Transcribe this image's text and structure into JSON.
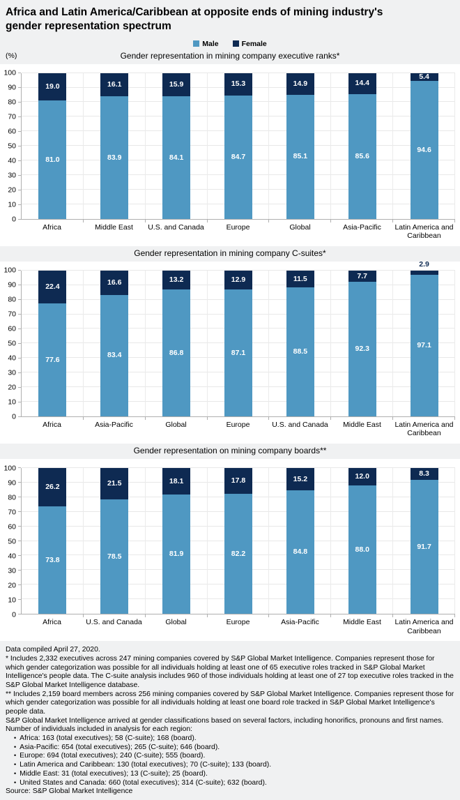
{
  "page": {
    "title": "Africa and Latin America/Caribbean at opposite ends of mining industry's gender representation spectrum",
    "percent_label": "(%)"
  },
  "legend": {
    "male": "Male",
    "female": "Female"
  },
  "colors": {
    "male": "#4f98c2",
    "female": "#0e2a52"
  },
  "chart_data": [
    {
      "type": "bar",
      "stacked": true,
      "title": "Gender representation in mining company executive ranks*",
      "categories": [
        "Africa",
        "Middle East",
        "U.S. and Canada",
        "Europe",
        "Global",
        "Asia-Pacific",
        "Latin America and Caribbean"
      ],
      "series": [
        {
          "name": "Male",
          "values": [
            81.0,
            83.9,
            84.1,
            84.7,
            85.1,
            85.6,
            94.6
          ]
        },
        {
          "name": "Female",
          "values": [
            19.0,
            16.1,
            15.9,
            15.3,
            14.9,
            14.4,
            5.4
          ]
        }
      ],
      "ylabel": "(%)",
      "ylim": [
        0,
        100
      ],
      "ytick_step": 10,
      "grid": true,
      "legend_position": "top-center"
    },
    {
      "type": "bar",
      "stacked": true,
      "title": "Gender representation in mining company C-suites*",
      "categories": [
        "Africa",
        "Asia-Pacific",
        "Global",
        "Europe",
        "U.S. and Canada",
        "Middle East",
        "Latin America and Caribbean"
      ],
      "series": [
        {
          "name": "Male",
          "values": [
            77.6,
            83.4,
            86.8,
            87.1,
            88.5,
            92.3,
            97.1
          ]
        },
        {
          "name": "Female",
          "values": [
            22.4,
            16.6,
            13.2,
            12.9,
            11.5,
            7.7,
            2.9
          ]
        }
      ],
      "ylim": [
        0,
        100
      ],
      "ytick_step": 10,
      "grid": true
    },
    {
      "type": "bar",
      "stacked": true,
      "title": "Gender representation on mining company boards**",
      "categories": [
        "Africa",
        "U.S. and Canada",
        "Global",
        "Europe",
        "Asia-Pacific",
        "Middle East",
        "Latin America and Caribbean"
      ],
      "series": [
        {
          "name": "Male",
          "values": [
            73.8,
            78.5,
            81.9,
            82.2,
            84.8,
            88.0,
            91.7
          ]
        },
        {
          "name": "Female",
          "values": [
            26.2,
            21.5,
            18.1,
            17.8,
            15.2,
            12.0,
            8.3
          ]
        }
      ],
      "ylim": [
        0,
        100
      ],
      "ytick_step": 10,
      "grid": true
    }
  ],
  "footnotes": {
    "compiled": "Data compiled April 27, 2020.",
    "note_executives": "* Includes 2,332 executives across 247 mining companies covered by S&P Global Market Intelligence. Companies represent those for which gender categorization was possible for all individuals holding at least one of 65 executive roles tracked in S&P Global Market Intelligence's people data. The C-suite analysis includes 960 of those individuals holding at least one of 27 top executive roles tracked in the S&P Global Market Intelligence database.",
    "note_boards": "** Includes 2,159 board members across 256 mining companies covered by S&P Global Market Intelligence. Companies represent those for which gender categorization was possible for all individuals holding at least one board role tracked in S&P Global Market Intelligence's people data.",
    "note_gender_method": "S&P Global Market Intelligence arrived at gender classifications based on several factors, including honorifics, pronouns and first names.",
    "note_counts_intro": "Number of individuals included in analysis for each region:",
    "region_counts": [
      "Africa: 163 (total executives); 58 (C-suite); 168 (board).",
      "Asia-Pacific: 654 (total executives); 265 (C-suite); 646 (board).",
      "Europe: 694 (total executives); 240 (C-suite); 555 (board).",
      "Latin America and Caribbean: 130 (total executives); 70 (C-suite); 133 (board).",
      "Middle East: 31 (total executives); 13 (C-suite); 25 (board).",
      "United States and Canada: 660 (total executives); 314 (C-suite); 632 (board)."
    ],
    "source": "Source: S&P Global Market Intelligence"
  }
}
